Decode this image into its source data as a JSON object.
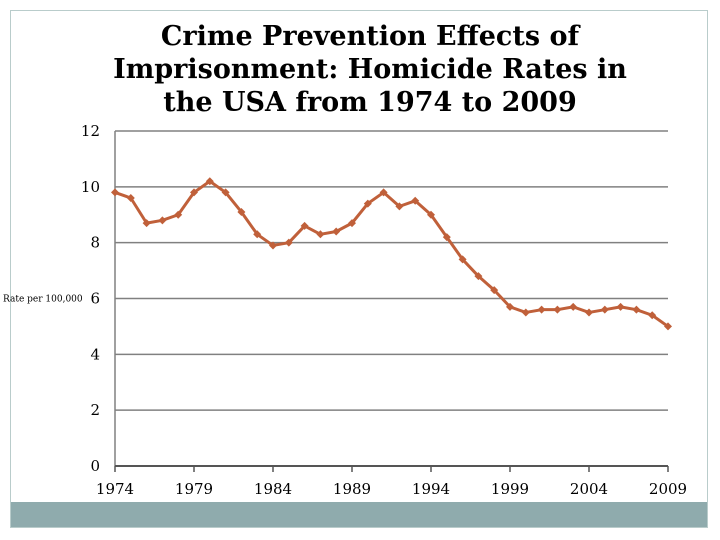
{
  "chart_data": {
    "type": "line",
    "title_lines": [
      "Crime Prevention Effects of",
      "Imprisonment:  Homicide Rates in",
      "the USA from 1974 to 2009"
    ],
    "xlabel": "",
    "ylabel": "Rate per 100,000",
    "ylim": [
      0,
      12
    ],
    "yticks": [
      "0",
      "2",
      "4",
      "6",
      "8",
      "10",
      "12"
    ],
    "xticks": [
      "1974",
      "1979",
      "1984",
      "1989",
      "1994",
      "1999",
      "2004",
      "2009"
    ],
    "grid": true,
    "series": [
      {
        "name": "Homicide rate",
        "color": "#c0603a",
        "x": [
          1974,
          1975,
          1976,
          1977,
          1978,
          1979,
          1980,
          1981,
          1982,
          1983,
          1984,
          1985,
          1986,
          1987,
          1988,
          1989,
          1990,
          1991,
          1992,
          1993,
          1994,
          1995,
          1996,
          1997,
          1998,
          1999,
          2000,
          2001,
          2002,
          2003,
          2004,
          2005,
          2006,
          2007,
          2008,
          2009
        ],
        "values": [
          9.8,
          9.6,
          8.7,
          8.8,
          9.0,
          9.8,
          10.2,
          9.8,
          9.1,
          8.3,
          7.9,
          8.0,
          8.6,
          8.3,
          8.4,
          8.7,
          9.4,
          9.8,
          9.3,
          9.5,
          9.0,
          8.2,
          7.4,
          6.8,
          6.3,
          5.7,
          5.5,
          5.6,
          5.6,
          5.7,
          5.5,
          5.6,
          5.7,
          5.6,
          5.4,
          5.0
        ]
      }
    ]
  },
  "colors": {
    "line": "#c0603a",
    "grid": "#808080",
    "band": "#8fabad"
  }
}
